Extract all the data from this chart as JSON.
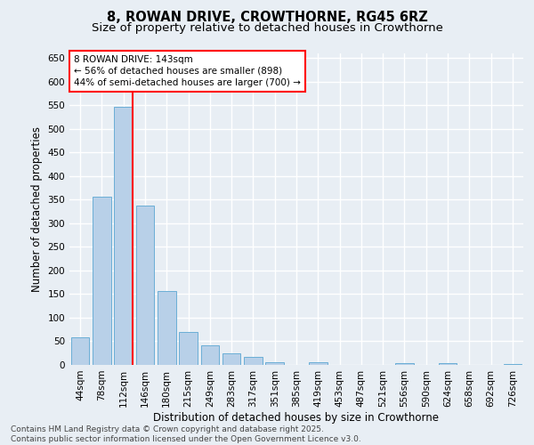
{
  "title_line1": "8, ROWAN DRIVE, CROWTHORNE, RG45 6RZ",
  "title_line2": "Size of property relative to detached houses in Crowthorne",
  "xlabel": "Distribution of detached houses by size in Crowthorne",
  "ylabel": "Number of detached properties",
  "categories": [
    "44sqm",
    "78sqm",
    "112sqm",
    "146sqm",
    "180sqm",
    "215sqm",
    "249sqm",
    "283sqm",
    "317sqm",
    "351sqm",
    "385sqm",
    "419sqm",
    "453sqm",
    "487sqm",
    "521sqm",
    "556sqm",
    "590sqm",
    "624sqm",
    "658sqm",
    "692sqm",
    "726sqm"
  ],
  "values": [
    58,
    356,
    546,
    337,
    157,
    70,
    42,
    25,
    17,
    6,
    0,
    6,
    0,
    0,
    0,
    4,
    0,
    4,
    0,
    0,
    2
  ],
  "bar_color": "#b8d0e8",
  "bar_edge_color": "#6aaed6",
  "ylim": [
    0,
    660
  ],
  "yticks": [
    0,
    50,
    100,
    150,
    200,
    250,
    300,
    350,
    400,
    450,
    500,
    550,
    600,
    650
  ],
  "background_color": "#e8eef4",
  "grid_color": "#ffffff",
  "annotation_text_line1": "8 ROWAN DRIVE: 143sqm",
  "annotation_text_line2": "← 56% of detached houses are smaller (898)",
  "annotation_text_line3": "44% of semi-detached houses are larger (700) →",
  "footer_line1": "Contains HM Land Registry data © Crown copyright and database right 2025.",
  "footer_line2": "Contains public sector information licensed under the Open Government Licence v3.0.",
  "title_fontsize": 10.5,
  "subtitle_fontsize": 9.5,
  "axis_label_fontsize": 8.5,
  "tick_fontsize": 7.5,
  "annotation_fontsize": 7.5,
  "footer_fontsize": 6.5
}
